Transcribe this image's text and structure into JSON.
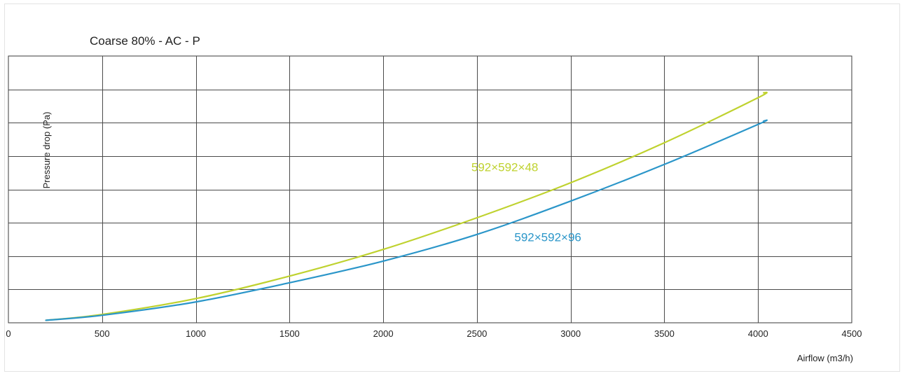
{
  "chart_data": {
    "type": "line",
    "title": "Coarse 80% - AC - P",
    "xlabel": "Airflow (m3/h)",
    "ylabel": "Pressure drop (Pa)",
    "xlim": [
      0,
      4500
    ],
    "ylim": [
      0,
      160
    ],
    "xticks": [
      0,
      500,
      1000,
      1500,
      2000,
      2500,
      3000,
      3500,
      4000,
      4500
    ],
    "yticks": [
      0,
      20,
      40,
      60,
      80,
      100,
      120,
      140,
      160
    ],
    "grid": true,
    "series": [
      {
        "name": "592×592×48",
        "color": "#bfd22f",
        "x": [
          200,
          500,
          1000,
          1500,
          2000,
          2500,
          3000,
          3500,
          4000,
          4030
        ],
        "y": [
          1.5,
          5,
          14.5,
          28,
          44,
          63,
          84,
          108,
          135,
          138
        ],
        "label_at": [
          2470,
          91
        ]
      },
      {
        "name": "592×592×96",
        "color": "#2b96c9",
        "x": [
          200,
          500,
          1000,
          1500,
          2000,
          2500,
          3000,
          3500,
          4000,
          4030
        ],
        "y": [
          1.5,
          4.5,
          12.5,
          24,
          37,
          53,
          73,
          95,
          119,
          121
        ],
        "label_at": [
          2700,
          49
        ]
      }
    ]
  }
}
